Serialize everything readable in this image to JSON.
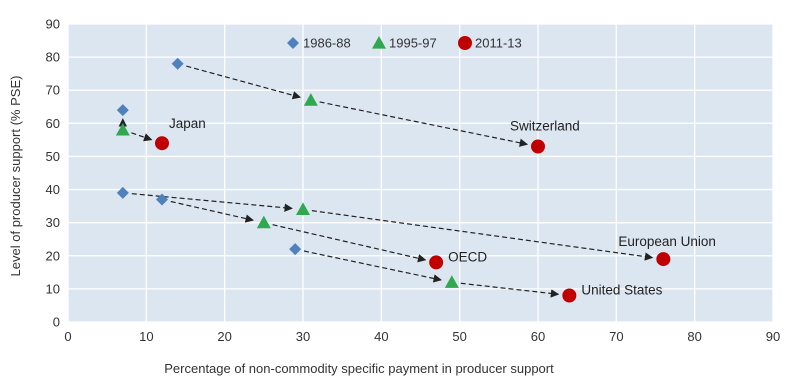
{
  "chart_data": {
    "type": "scatter",
    "title": "",
    "xlabel": "Percentage of non-commodity specific payment in producer support",
    "ylabel": "Level of producer support (% PSE)",
    "xlim": [
      0,
      90
    ],
    "ylim": [
      0,
      90
    ],
    "xticks": [
      "0",
      "10",
      "20",
      "30",
      "40",
      "50",
      "60",
      "70",
      "80",
      "90"
    ],
    "yticks": [
      "0",
      "10",
      "20",
      "30",
      "40",
      "50",
      "60",
      "70",
      "80",
      "90"
    ],
    "grid": true,
    "legend_position": "top",
    "series": [
      {
        "name": "1986-88",
        "marker": "diamond",
        "color": "#4f81bd",
        "points": [
          {
            "x": 14,
            "y": 78
          },
          {
            "x": 7,
            "y": 64
          },
          {
            "x": 7,
            "y": 39
          },
          {
            "x": 12,
            "y": 37
          },
          {
            "x": 29,
            "y": 22
          }
        ]
      },
      {
        "name": "1995-97",
        "marker": "triangle",
        "color": "#2fa84f",
        "points": [
          {
            "x": 31,
            "y": 67
          },
          {
            "x": 7,
            "y": 58
          },
          {
            "x": 30,
            "y": 34
          },
          {
            "x": 25,
            "y": 30
          },
          {
            "x": 49,
            "y": 12
          }
        ]
      },
      {
        "name": "2011-13",
        "marker": "circle",
        "color": "#c00000",
        "points": [
          {
            "x": 60,
            "y": 53
          },
          {
            "x": 12,
            "y": 54
          },
          {
            "x": 76,
            "y": 19
          },
          {
            "x": 47,
            "y": 18
          },
          {
            "x": 64,
            "y": 8
          }
        ]
      }
    ],
    "paths": [
      {
        "label": "Switzerland",
        "points": [
          {
            "x": 14,
            "y": 78
          },
          {
            "x": 31,
            "y": 67
          },
          {
            "x": 60,
            "y": 53
          }
        ]
      },
      {
        "label": "Japan",
        "points": [
          {
            "x": 7,
            "y": 64
          },
          {
            "x": 7,
            "y": 58
          },
          {
            "x": 12,
            "y": 54
          }
        ]
      },
      {
        "label": "European Union",
        "points": [
          {
            "x": 7,
            "y": 39
          },
          {
            "x": 30,
            "y": 34
          },
          {
            "x": 76,
            "y": 19
          }
        ]
      },
      {
        "label": "OECD",
        "points": [
          {
            "x": 12,
            "y": 37
          },
          {
            "x": 25,
            "y": 30
          },
          {
            "x": 47,
            "y": 18
          }
        ]
      },
      {
        "label": "United States",
        "points": [
          {
            "x": 29,
            "y": 22
          },
          {
            "x": 49,
            "y": 12
          },
          {
            "x": 64,
            "y": 8
          }
        ]
      }
    ],
    "colors": {
      "plot_background": "#dce6f1",
      "grid": "#ffffff",
      "arrow": "#222222"
    }
  }
}
